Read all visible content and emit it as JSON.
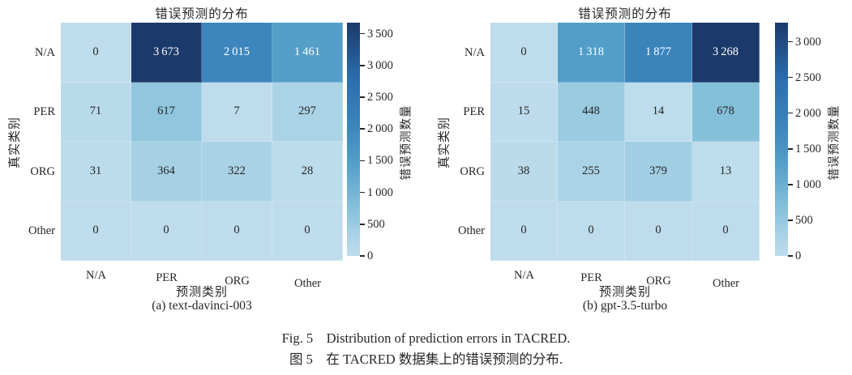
{
  "chart_data": [
    {
      "type": "heatmap",
      "title": "错误预测的分布",
      "xlabel": "预测类别",
      "ylabel": "真实类别",
      "x_categories": [
        "N/A",
        "PER",
        "ORG",
        "Other"
      ],
      "y_categories": [
        "N/A",
        "PER",
        "ORG",
        "Other"
      ],
      "values": [
        [
          0,
          3673,
          2015,
          1461
        ],
        [
          71,
          617,
          7,
          297
        ],
        [
          31,
          364,
          322,
          28
        ],
        [
          0,
          0,
          0,
          0
        ]
      ],
      "vmin": 0,
      "vmax": 3673,
      "colorbar_label": "错误预测数量",
      "colorbar_ticks": [
        0,
        500,
        1000,
        1500,
        2000,
        2500,
        3000,
        3500
      ],
      "caption": "(a) text-davinci-003",
      "legend": "none",
      "grid": "off"
    },
    {
      "type": "heatmap",
      "title": "错误预测的分布",
      "xlabel": "预测类别",
      "ylabel": "真实类别",
      "x_categories": [
        "N/A",
        "PER",
        "ORG",
        "Other"
      ],
      "y_categories": [
        "N/A",
        "PER",
        "ORG",
        "Other"
      ],
      "values": [
        [
          0,
          1318,
          1877,
          3268
        ],
        [
          15,
          448,
          14,
          678
        ],
        [
          38,
          255,
          379,
          13
        ],
        [
          0,
          0,
          0,
          0
        ]
      ],
      "vmin": 0,
      "vmax": 3268,
      "colorbar_label": "错误预测数量",
      "colorbar_ticks": [
        0,
        500,
        1000,
        1500,
        2000,
        2500,
        3000
      ],
      "caption": "(b) gpt-3.5-turbo",
      "legend": "none",
      "grid": "off"
    }
  ],
  "figure_caption": {
    "en": "Fig. 5　Distribution of prediction errors in TACRED.",
    "zh": "图 5　在 TACRED 数据集上的错误预测的分布."
  },
  "colors": {
    "background": "#ffffff",
    "text": "#262626",
    "annotation_dark": "#262626",
    "annotation_light": "#ffffff",
    "colormap_stops": [
      [
        0.0,
        "#bedcec"
      ],
      [
        0.1,
        "#a6d1e5"
      ],
      [
        0.17,
        "#8fc6de"
      ],
      [
        0.4,
        "#529fc8"
      ],
      [
        0.55,
        "#3d86bd"
      ],
      [
        0.75,
        "#2a6fb0"
      ],
      [
        1.0,
        "#1b3a6b"
      ]
    ]
  }
}
